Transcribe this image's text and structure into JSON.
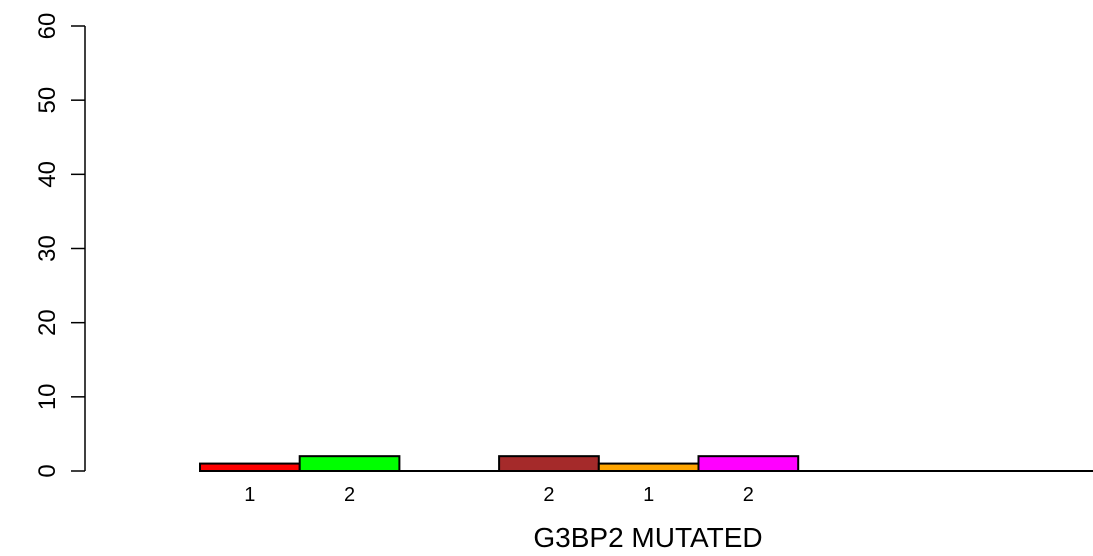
{
  "chart_data": {
    "type": "bar",
    "xlabel": "G3BP2 MUTATED",
    "ylabel": "",
    "ylim": [
      0,
      60
    ],
    "yticks": [
      0,
      10,
      20,
      30,
      40,
      50,
      60
    ],
    "yticks_labels": [
      "0",
      "10",
      "20",
      "30",
      "40",
      "50",
      "60"
    ],
    "bars": [
      {
        "label": "1",
        "value": 1,
        "color": "#ff0000",
        "slot": 0
      },
      {
        "label": "2",
        "value": 2,
        "color": "#00ff00",
        "slot": 1
      },
      {
        "label": "2",
        "value": 2,
        "color": "#a52a2a",
        "slot": 3
      },
      {
        "label": "1",
        "value": 1,
        "color": "#ffa500",
        "slot": 4
      },
      {
        "label": "2",
        "value": 2,
        "color": "#ff00ff",
        "slot": 5
      }
    ],
    "grid": false
  }
}
